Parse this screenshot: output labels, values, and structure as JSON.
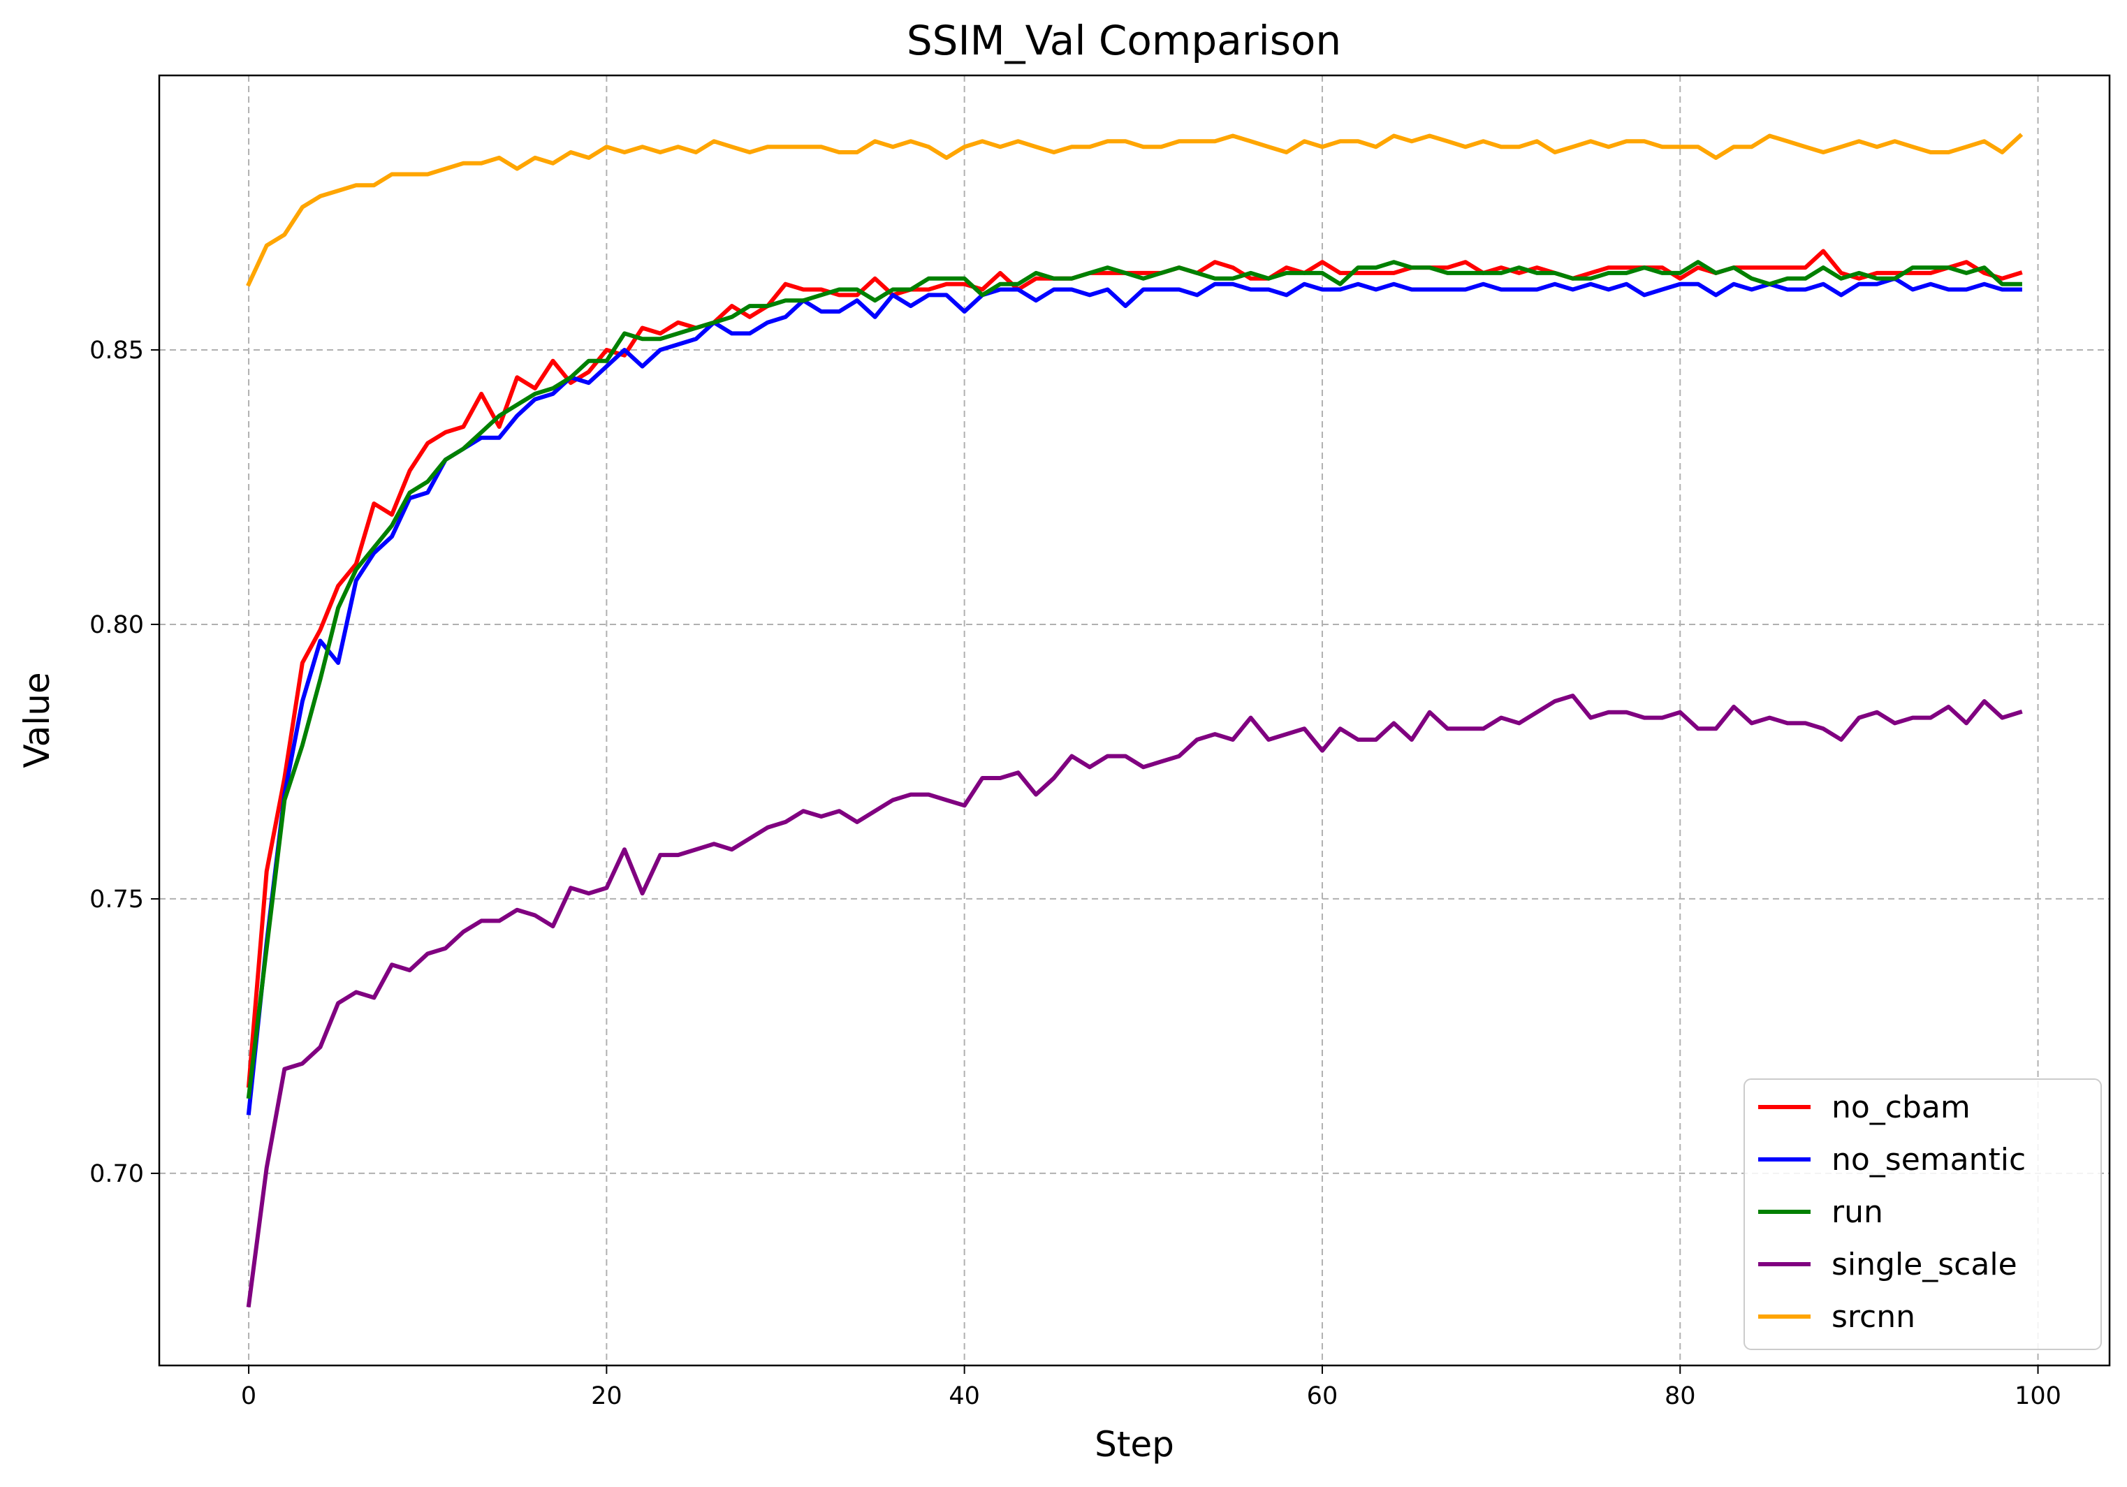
{
  "chart_data": {
    "type": "line",
    "title": "SSIM_Val Comparison",
    "xlabel": "Step",
    "ylabel": "Value",
    "xlim": [
      -5,
      104
    ],
    "ylim": [
      0.665,
      0.9
    ],
    "xticks": [
      0,
      20,
      40,
      60,
      80,
      100
    ],
    "yticks": [
      0.7,
      0.75,
      0.8,
      0.85
    ],
    "xtick_labels": [
      "0",
      "20",
      "40",
      "60",
      "80",
      "100"
    ],
    "ytick_labels": [
      "0.70",
      "0.75",
      "0.80",
      "0.85"
    ],
    "grid": true,
    "legend_position": "lower-right",
    "x": [
      0,
      1,
      2,
      3,
      4,
      5,
      6,
      7,
      8,
      9,
      10,
      11,
      12,
      13,
      14,
      15,
      16,
      17,
      18,
      19,
      20,
      21,
      22,
      23,
      24,
      25,
      26,
      27,
      28,
      29,
      30,
      31,
      32,
      33,
      34,
      35,
      36,
      37,
      38,
      39,
      40,
      41,
      42,
      43,
      44,
      45,
      46,
      47,
      48,
      49,
      50,
      51,
      52,
      53,
      54,
      55,
      56,
      57,
      58,
      59,
      60,
      61,
      62,
      63,
      64,
      65,
      66,
      67,
      68,
      69,
      70,
      71,
      72,
      73,
      74,
      75,
      76,
      77,
      78,
      79,
      80,
      81,
      82,
      83,
      84,
      85,
      86,
      87,
      88,
      89,
      90,
      91,
      92,
      93,
      94,
      95,
      96,
      97,
      98,
      99
    ],
    "series": [
      {
        "name": "no_cbam",
        "color": "#ff0000",
        "values": [
          0.716,
          0.755,
          0.772,
          0.793,
          0.799,
          0.807,
          0.811,
          0.822,
          0.82,
          0.828,
          0.833,
          0.835,
          0.836,
          0.842,
          0.836,
          0.845,
          0.843,
          0.848,
          0.844,
          0.846,
          0.85,
          0.849,
          0.854,
          0.853,
          0.855,
          0.854,
          0.855,
          0.858,
          0.856,
          0.858,
          0.862,
          0.861,
          0.861,
          0.86,
          0.86,
          0.863,
          0.86,
          0.861,
          0.861,
          0.862,
          0.862,
          0.861,
          0.864,
          0.861,
          0.863,
          0.863,
          0.863,
          0.864,
          0.864,
          0.864,
          0.864,
          0.864,
          0.865,
          0.864,
          0.866,
          0.865,
          0.863,
          0.863,
          0.865,
          0.864,
          0.866,
          0.864,
          0.864,
          0.864,
          0.864,
          0.865,
          0.865,
          0.865,
          0.866,
          0.864,
          0.865,
          0.864,
          0.865,
          0.864,
          0.863,
          0.864,
          0.865,
          0.865,
          0.865,
          0.865,
          0.863,
          0.865,
          0.864,
          0.865,
          0.865,
          0.865,
          0.865,
          0.865,
          0.868,
          0.864,
          0.863,
          0.864,
          0.864,
          0.864,
          0.864,
          0.865,
          0.866,
          0.864,
          0.863,
          0.864
        ]
      },
      {
        "name": "no_semantic",
        "color": "#0000ff",
        "values": [
          0.711,
          0.742,
          0.769,
          0.786,
          0.797,
          0.793,
          0.808,
          0.813,
          0.816,
          0.823,
          0.824,
          0.83,
          0.832,
          0.834,
          0.834,
          0.838,
          0.841,
          0.842,
          0.845,
          0.844,
          0.847,
          0.85,
          0.847,
          0.85,
          0.851,
          0.852,
          0.855,
          0.853,
          0.853,
          0.855,
          0.856,
          0.859,
          0.857,
          0.857,
          0.859,
          0.856,
          0.86,
          0.858,
          0.86,
          0.86,
          0.857,
          0.86,
          0.861,
          0.861,
          0.859,
          0.861,
          0.861,
          0.86,
          0.861,
          0.858,
          0.861,
          0.861,
          0.861,
          0.86,
          0.862,
          0.862,
          0.861,
          0.861,
          0.86,
          0.862,
          0.861,
          0.861,
          0.862,
          0.861,
          0.862,
          0.861,
          0.861,
          0.861,
          0.861,
          0.862,
          0.861,
          0.861,
          0.861,
          0.862,
          0.861,
          0.862,
          0.861,
          0.862,
          0.86,
          0.861,
          0.862,
          0.862,
          0.86,
          0.862,
          0.861,
          0.862,
          0.861,
          0.861,
          0.862,
          0.86,
          0.862,
          0.862,
          0.863,
          0.861,
          0.862,
          0.861,
          0.861,
          0.862,
          0.861,
          0.861
        ]
      },
      {
        "name": "run",
        "color": "#008000",
        "values": [
          0.714,
          0.741,
          0.768,
          0.778,
          0.79,
          0.803,
          0.81,
          0.814,
          0.818,
          0.824,
          0.826,
          0.83,
          0.832,
          0.835,
          0.838,
          0.84,
          0.842,
          0.843,
          0.845,
          0.848,
          0.848,
          0.853,
          0.852,
          0.852,
          0.853,
          0.854,
          0.855,
          0.856,
          0.858,
          0.858,
          0.859,
          0.859,
          0.86,
          0.861,
          0.861,
          0.859,
          0.861,
          0.861,
          0.863,
          0.863,
          0.863,
          0.86,
          0.862,
          0.862,
          0.864,
          0.863,
          0.863,
          0.864,
          0.865,
          0.864,
          0.863,
          0.864,
          0.865,
          0.864,
          0.863,
          0.863,
          0.864,
          0.863,
          0.864,
          0.864,
          0.864,
          0.862,
          0.865,
          0.865,
          0.866,
          0.865,
          0.865,
          0.864,
          0.864,
          0.864,
          0.864,
          0.865,
          0.864,
          0.864,
          0.863,
          0.863,
          0.864,
          0.864,
          0.865,
          0.864,
          0.864,
          0.866,
          0.864,
          0.865,
          0.863,
          0.862,
          0.863,
          0.863,
          0.865,
          0.863,
          0.864,
          0.863,
          0.863,
          0.865,
          0.865,
          0.865,
          0.864,
          0.865,
          0.862,
          0.862
        ]
      },
      {
        "name": "single_scale",
        "color": "#800080",
        "values": [
          0.676,
          0.701,
          0.719,
          0.72,
          0.723,
          0.731,
          0.733,
          0.732,
          0.738,
          0.737,
          0.74,
          0.741,
          0.744,
          0.746,
          0.746,
          0.748,
          0.747,
          0.745,
          0.752,
          0.751,
          0.752,
          0.759,
          0.751,
          0.758,
          0.758,
          0.759,
          0.76,
          0.759,
          0.761,
          0.763,
          0.764,
          0.766,
          0.765,
          0.766,
          0.764,
          0.766,
          0.768,
          0.769,
          0.769,
          0.768,
          0.767,
          0.772,
          0.772,
          0.773,
          0.769,
          0.772,
          0.776,
          0.774,
          0.776,
          0.776,
          0.774,
          0.775,
          0.776,
          0.779,
          0.78,
          0.779,
          0.783,
          0.779,
          0.78,
          0.781,
          0.777,
          0.781,
          0.779,
          0.779,
          0.782,
          0.779,
          0.784,
          0.781,
          0.781,
          0.781,
          0.783,
          0.782,
          0.784,
          0.786,
          0.787,
          0.783,
          0.784,
          0.784,
          0.783,
          0.783,
          0.784,
          0.781,
          0.781,
          0.785,
          0.782,
          0.783,
          0.782,
          0.782,
          0.781,
          0.779,
          0.783,
          0.784,
          0.782,
          0.783,
          0.783,
          0.785,
          0.782,
          0.786,
          0.783,
          0.784
        ]
      },
      {
        "name": "srcnn",
        "color": "#ffa500",
        "values": [
          0.862,
          0.869,
          0.871,
          0.876,
          0.878,
          0.879,
          0.88,
          0.88,
          0.882,
          0.882,
          0.882,
          0.883,
          0.884,
          0.884,
          0.885,
          0.883,
          0.885,
          0.884,
          0.886,
          0.885,
          0.887,
          0.886,
          0.887,
          0.886,
          0.887,
          0.886,
          0.888,
          0.887,
          0.886,
          0.887,
          0.887,
          0.887,
          0.887,
          0.886,
          0.886,
          0.888,
          0.887,
          0.888,
          0.887,
          0.885,
          0.887,
          0.888,
          0.887,
          0.888,
          0.887,
          0.886,
          0.887,
          0.887,
          0.888,
          0.888,
          0.887,
          0.887,
          0.888,
          0.888,
          0.888,
          0.889,
          0.888,
          0.887,
          0.886,
          0.888,
          0.887,
          0.888,
          0.888,
          0.887,
          0.889,
          0.888,
          0.889,
          0.888,
          0.887,
          0.888,
          0.887,
          0.887,
          0.888,
          0.886,
          0.887,
          0.888,
          0.887,
          0.888,
          0.888,
          0.887,
          0.887,
          0.887,
          0.885,
          0.887,
          0.887,
          0.889,
          0.888,
          0.887,
          0.886,
          0.887,
          0.888,
          0.887,
          0.888,
          0.887,
          0.886,
          0.886,
          0.887,
          0.888,
          0.886,
          0.889
        ]
      }
    ]
  }
}
